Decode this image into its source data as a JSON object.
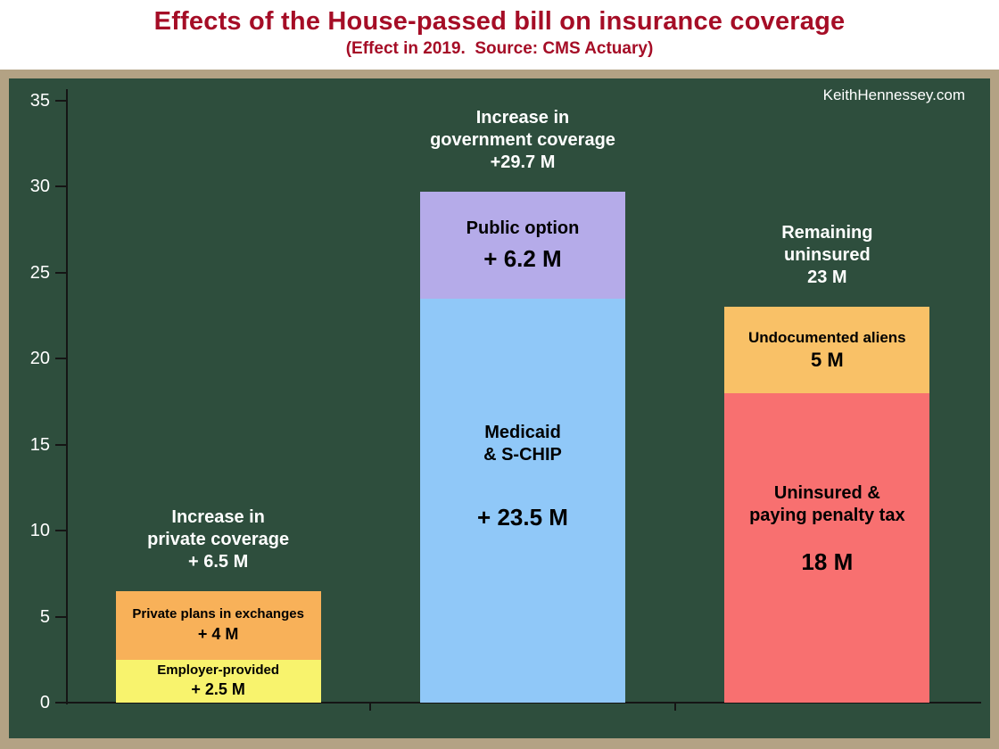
{
  "header": {
    "title": "Effects of the House-passed bill on insurance coverage",
    "subtitle": "(Effect in 2019.  Source: CMS Actuary)"
  },
  "plot": {
    "watermark": "KeithHennessey.com"
  },
  "colors": {
    "title": "#a50d26",
    "page_background": "#ffffff",
    "frame": "#b3a284",
    "plot_background": "#2e4e3d",
    "axis": "#151515",
    "tick_label": "#ffffff",
    "bar_label": "#ffffff",
    "segment_text": "#000000"
  },
  "chart_data": {
    "type": "bar",
    "stacked": true,
    "title": "Effects of the House-passed bill on insurance coverage",
    "subtitle": "(Effect in 2019.  Source: CMS Actuary)",
    "xlabel": "",
    "ylabel": "",
    "ylim": [
      0,
      35
    ],
    "yticks": [
      0,
      5,
      10,
      15,
      20,
      25,
      30,
      35
    ],
    "grid": false,
    "legend": false,
    "groups": [
      {
        "name": "Increase in private coverage",
        "label_lines": [
          "Increase in",
          "private coverage",
          "+ 6.5 M"
        ],
        "total": 6.5,
        "segments": [
          {
            "name": "Employer-provided",
            "label_lines": [
              "Employer-provided"
            ],
            "value": 2.5,
            "value_label": "+ 2.5 M",
            "color": "#f8f36d",
            "scale": "sm"
          },
          {
            "name": "Private plans in exchanges",
            "label_lines": [
              "Private plans in exchanges"
            ],
            "value": 4,
            "value_label": "+ 4 M",
            "color": "#f8b159",
            "scale": "sm"
          }
        ]
      },
      {
        "name": "Increase in government coverage",
        "label_lines": [
          "Increase in",
          "government coverage",
          "+29.7 M"
        ],
        "total": 29.7,
        "segments": [
          {
            "name": "Medicaid & S-CHIP",
            "label_lines": [
              "Medicaid",
              "& S-CHIP"
            ],
            "value": 23.5,
            "value_label": "+ 23.5 M",
            "color": "#90c8f8",
            "scale": "lg"
          },
          {
            "name": "Public option",
            "label_lines": [
              "Public option"
            ],
            "value": 6.2,
            "value_label": "+ 6.2 M",
            "color": "#b5abe9",
            "scale": "lg"
          }
        ]
      },
      {
        "name": "Remaining uninsured",
        "label_lines": [
          "Remaining",
          "uninsured",
          "23 M"
        ],
        "total": 23,
        "segments": [
          {
            "name": "Uninsured & paying penalty tax",
            "label_lines": [
              "Uninsured &",
              "paying penalty tax"
            ],
            "value": 18,
            "value_label": "18 M",
            "color": "#f87070",
            "scale": "lg"
          },
          {
            "name": "Undocumented aliens",
            "label_lines": [
              "Undocumented aliens"
            ],
            "value": 5,
            "value_label": "5 M",
            "color": "#f9c167",
            "scale": "md"
          }
        ]
      }
    ]
  }
}
